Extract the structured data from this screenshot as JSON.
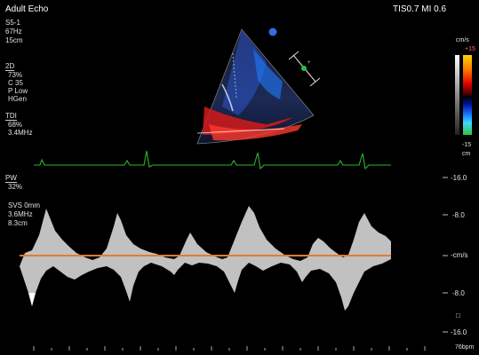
{
  "header": {
    "mode": "Adult Echo",
    "probe": "S5-1",
    "frame_rate": "67Hz",
    "depth": "15cm",
    "tis_mi": "TIS0.7  MI 0.6"
  },
  "params_2d": {
    "title": "2D",
    "gain": "73%",
    "c": "C 35",
    "p": "P Low",
    "mode": "HGen"
  },
  "params_tdi": {
    "title": "TDI",
    "gain": "68%",
    "freq": "3.4MHz"
  },
  "params_pw": {
    "title": "PW",
    "gain": "32%",
    "sv": "SVS 0mm",
    "freq": "3.6MHz",
    "depth": "8.3cm"
  },
  "color_scale": {
    "top_unit": "cm/s",
    "top_value": "+15",
    "bottom_value": "-15",
    "bottom_unit": "cm"
  },
  "velocity_scale": {
    "labels": [
      "-16.0",
      "-8.0",
      "-cm/s",
      "-8.0",
      "-16.0"
    ]
  },
  "footer": {
    "heart_rate": "76bpm"
  },
  "colors": {
    "ecg": "#2fb32f",
    "baseline": "#e87a2a",
    "doppler": "#e6e6e6"
  }
}
